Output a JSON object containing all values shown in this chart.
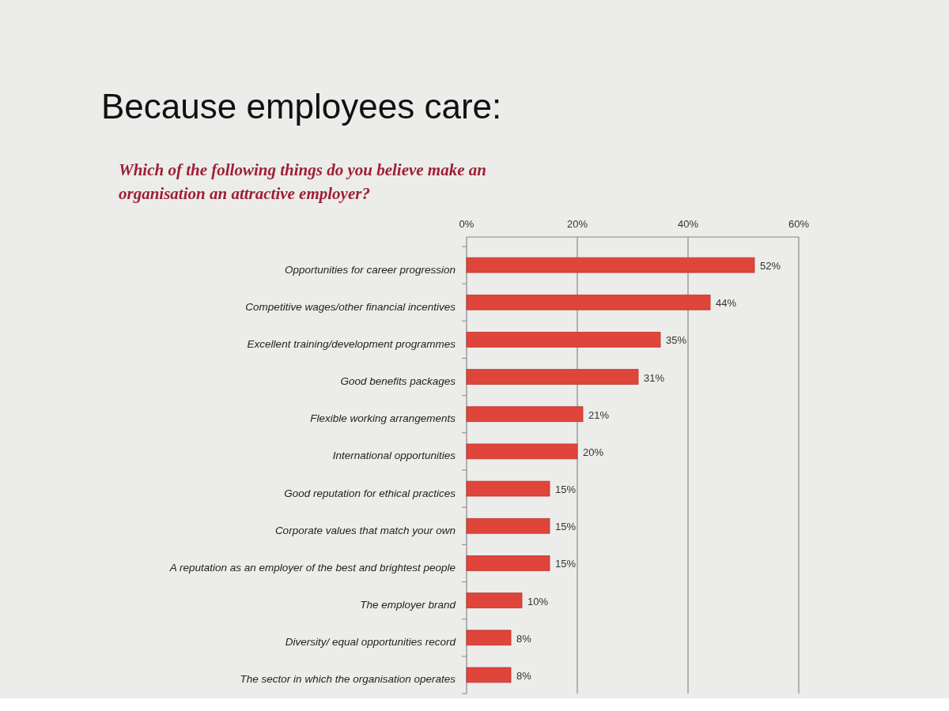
{
  "chart_data": {
    "type": "bar",
    "orientation": "horizontal",
    "title": "Because employees care:",
    "subtitle": "Which of the following things do you believe make an organisation an attractive employer?",
    "categories": [
      "Opportunities for career progression",
      "Competitive wages/other financial incentives",
      "Excellent training/development programmes",
      "Good benefits packages",
      "Flexible working arrangements",
      "International opportunities",
      "Good reputation for ethical practices",
      "Corporate values that match your own",
      "A reputation as an employer of the best and brightest people",
      "The employer brand",
      "Diversity/ equal opportunities record",
      "The sector in which the organisation operates"
    ],
    "values": [
      52,
      44,
      35,
      31,
      21,
      20,
      15,
      15,
      15,
      10,
      8,
      8
    ],
    "value_labels": [
      "52%",
      "44%",
      "35%",
      "31%",
      "21%",
      "20%",
      "15%",
      "15%",
      "15%",
      "10%",
      "8%",
      "8%"
    ],
    "color": "#e0453c",
    "xlim": [
      0,
      60
    ],
    "xticks": [
      {
        "value": 0,
        "label": "0%"
      },
      {
        "value": 20,
        "label": "20%"
      },
      {
        "value": 40,
        "label": "40%"
      },
      {
        "value": 60,
        "label": "60%"
      }
    ],
    "grid": "x"
  }
}
